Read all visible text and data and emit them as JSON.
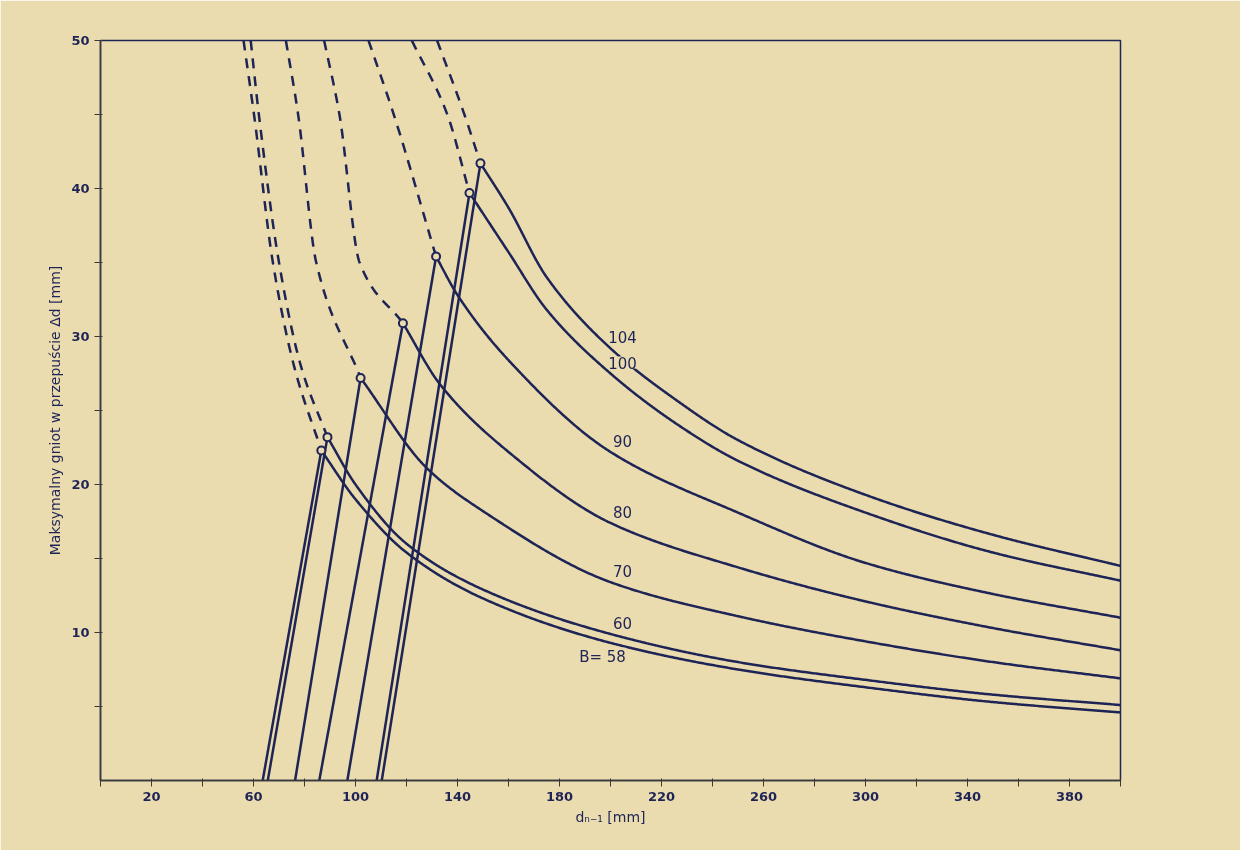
{
  "chart_data": {
    "type": "line",
    "xlabel": "dₙ₋₁ [mm]",
    "ylabel": "Maksymalny gniot w przepuście Δd [mm]",
    "xlim": [
      0,
      400
    ],
    "ylim": [
      0,
      50
    ],
    "xticks": [
      {
        "value": 0,
        "label": null
      },
      20,
      {
        "value": 40,
        "label": null
      },
      60,
      {
        "value": 80,
        "label": null
      },
      100,
      {
        "value": 120,
        "label": null
      },
      140,
      {
        "value": 160,
        "label": null
      },
      180,
      {
        "value": 200,
        "label": null
      },
      220,
      {
        "value": 240,
        "label": null
      },
      260,
      {
        "value": 280,
        "label": null
      },
      300,
      {
        "value": 320,
        "label": null
      },
      340,
      {
        "value": 360,
        "label": null
      },
      380,
      {
        "value": 400,
        "label": null
      }
    ],
    "yticks": [
      {
        "value": 5,
        "label": null
      },
      10,
      {
        "value": 15,
        "label": null
      },
      20,
      {
        "value": 25,
        "label": null
      },
      30,
      {
        "value": 35,
        "label": null
      },
      40,
      {
        "value": 45,
        "label": null
      },
      50
    ],
    "grid": false,
    "line_style": "solid",
    "marker": "none",
    "series": [
      {
        "name": "B= 58",
        "color": "#1e2456",
        "x": [
          86.6,
          100,
          120,
          150,
          200,
          250,
          300,
          350,
          400
        ],
        "values": [
          22.3,
          19.0,
          15.4,
          12.3,
          9.3,
          7.5,
          6.3,
          5.3,
          4.6
        ]
      },
      {
        "name": "60",
        "color": "#1e2456",
        "x": [
          89,
          100,
          120,
          150,
          200,
          250,
          300,
          350,
          400
        ],
        "values": [
          23.2,
          20.0,
          16.0,
          12.9,
          9.9,
          8.0,
          6.8,
          5.8,
          5.1
        ]
      },
      {
        "name": "70",
        "color": "#1e2456",
        "x": [
          102,
          128,
          150,
          200,
          250,
          300,
          350,
          400
        ],
        "values": [
          27.2,
          21.1,
          18.2,
          13.4,
          11.1,
          9.4,
          8.0,
          6.9
        ]
      },
      {
        "name": "80",
        "color": "#1e2456",
        "x": [
          118.6,
          133,
          160,
          200,
          250,
          300,
          350,
          400
        ],
        "values": [
          30.9,
          26.8,
          22.2,
          17.4,
          14.4,
          12.1,
          10.3,
          8.8
        ]
      },
      {
        "name": "90",
        "color": "#1e2456",
        "x": [
          131.6,
          140,
          160,
          200,
          250,
          300,
          350,
          400
        ],
        "values": [
          35.4,
          32.8,
          28.4,
          22.2,
          18.1,
          14.7,
          12.6,
          11.0
        ]
      },
      {
        "name": "100",
        "color": "#1e2456",
        "x": [
          144.7,
          160,
          175,
          200,
          225,
          250,
          300,
          350,
          400
        ],
        "values": [
          39.7,
          35.7,
          31.8,
          27.5,
          24.2,
          21.6,
          18.1,
          15.4,
          13.5
        ]
      },
      {
        "name": "104",
        "color": "#1e2456",
        "x": [
          149,
          160,
          175,
          200,
          225,
          250,
          300,
          350,
          400
        ],
        "values": [
          41.7,
          38.7,
          34.0,
          29.2,
          25.8,
          23.0,
          19.3,
          16.6,
          14.5
        ]
      },
      {
        "color": "#1e2456",
        "line_style": "dashed",
        "x": [
          56.1,
          60.2,
          67.6,
          75.9,
          86.6
        ],
        "values": [
          50,
          45,
          35,
          28,
          22.3
        ]
      },
      {
        "color": "#1e2456",
        "line_style": "dashed",
        "x": [
          58.9,
          62.1,
          70.0,
          78.6,
          89
        ],
        "values": [
          50,
          45,
          35,
          28,
          23.2
        ]
      },
      {
        "color": "#1e2456",
        "line_style": "dashed",
        "x": [
          72.7,
          77.5,
          84.6,
          102
        ],
        "values": [
          50,
          45,
          35,
          27.2
        ]
      },
      {
        "color": "#1e2456",
        "line_style": "dashed",
        "x": [
          87.7,
          93.7,
          101.6,
          118.6
        ],
        "values": [
          50,
          45,
          35,
          30.9
        ]
      },
      {
        "color": "#1e2456",
        "line_style": "dashed",
        "x": [
          105.1,
          115,
          131.6
        ],
        "values": [
          50,
          45,
          35.4
        ]
      },
      {
        "color": "#1e2456",
        "line_style": "dashed",
        "x": [
          122.1,
          136,
          144.7
        ],
        "values": [
          50,
          45,
          39.7
        ]
      },
      {
        "color": "#1e2456",
        "line_style": "dashed",
        "x": [
          132,
          142.7,
          149
        ],
        "values": [
          50,
          45,
          41.7
        ]
      },
      {
        "color": "#1e2456",
        "x": [
          63.6,
          86.6
        ],
        "values": [
          0,
          22.3
        ]
      },
      {
        "color": "#1e2456",
        "x": [
          65.6,
          89
        ],
        "values": [
          0,
          23.2
        ]
      },
      {
        "color": "#1e2456",
        "x": [
          76.3,
          102
        ],
        "values": [
          0,
          27.2
        ]
      },
      {
        "color": "#1e2456",
        "x": [
          85.8,
          118.6
        ],
        "values": [
          0,
          30.9
        ]
      },
      {
        "color": "#1e2456",
        "x": [
          96.8,
          131.6
        ],
        "values": [
          0,
          35.4
        ]
      },
      {
        "color": "#1e2456",
        "x": [
          108.3,
          144.7
        ],
        "values": [
          0,
          39.7
        ]
      },
      {
        "color": "#1e2456",
        "x": [
          110.3,
          149
        ],
        "values": [
          0,
          41.7
        ]
      },
      {
        "type": "scatter",
        "marker": "circle",
        "color": "#1e2456",
        "x": [
          86.6,
          89,
          102,
          118.6,
          131.6,
          144.7,
          149
        ],
        "values": [
          22.3,
          23.2,
          27.2,
          30.9,
          35.4,
          39.7,
          41.7
        ]
      }
    ]
  }
}
